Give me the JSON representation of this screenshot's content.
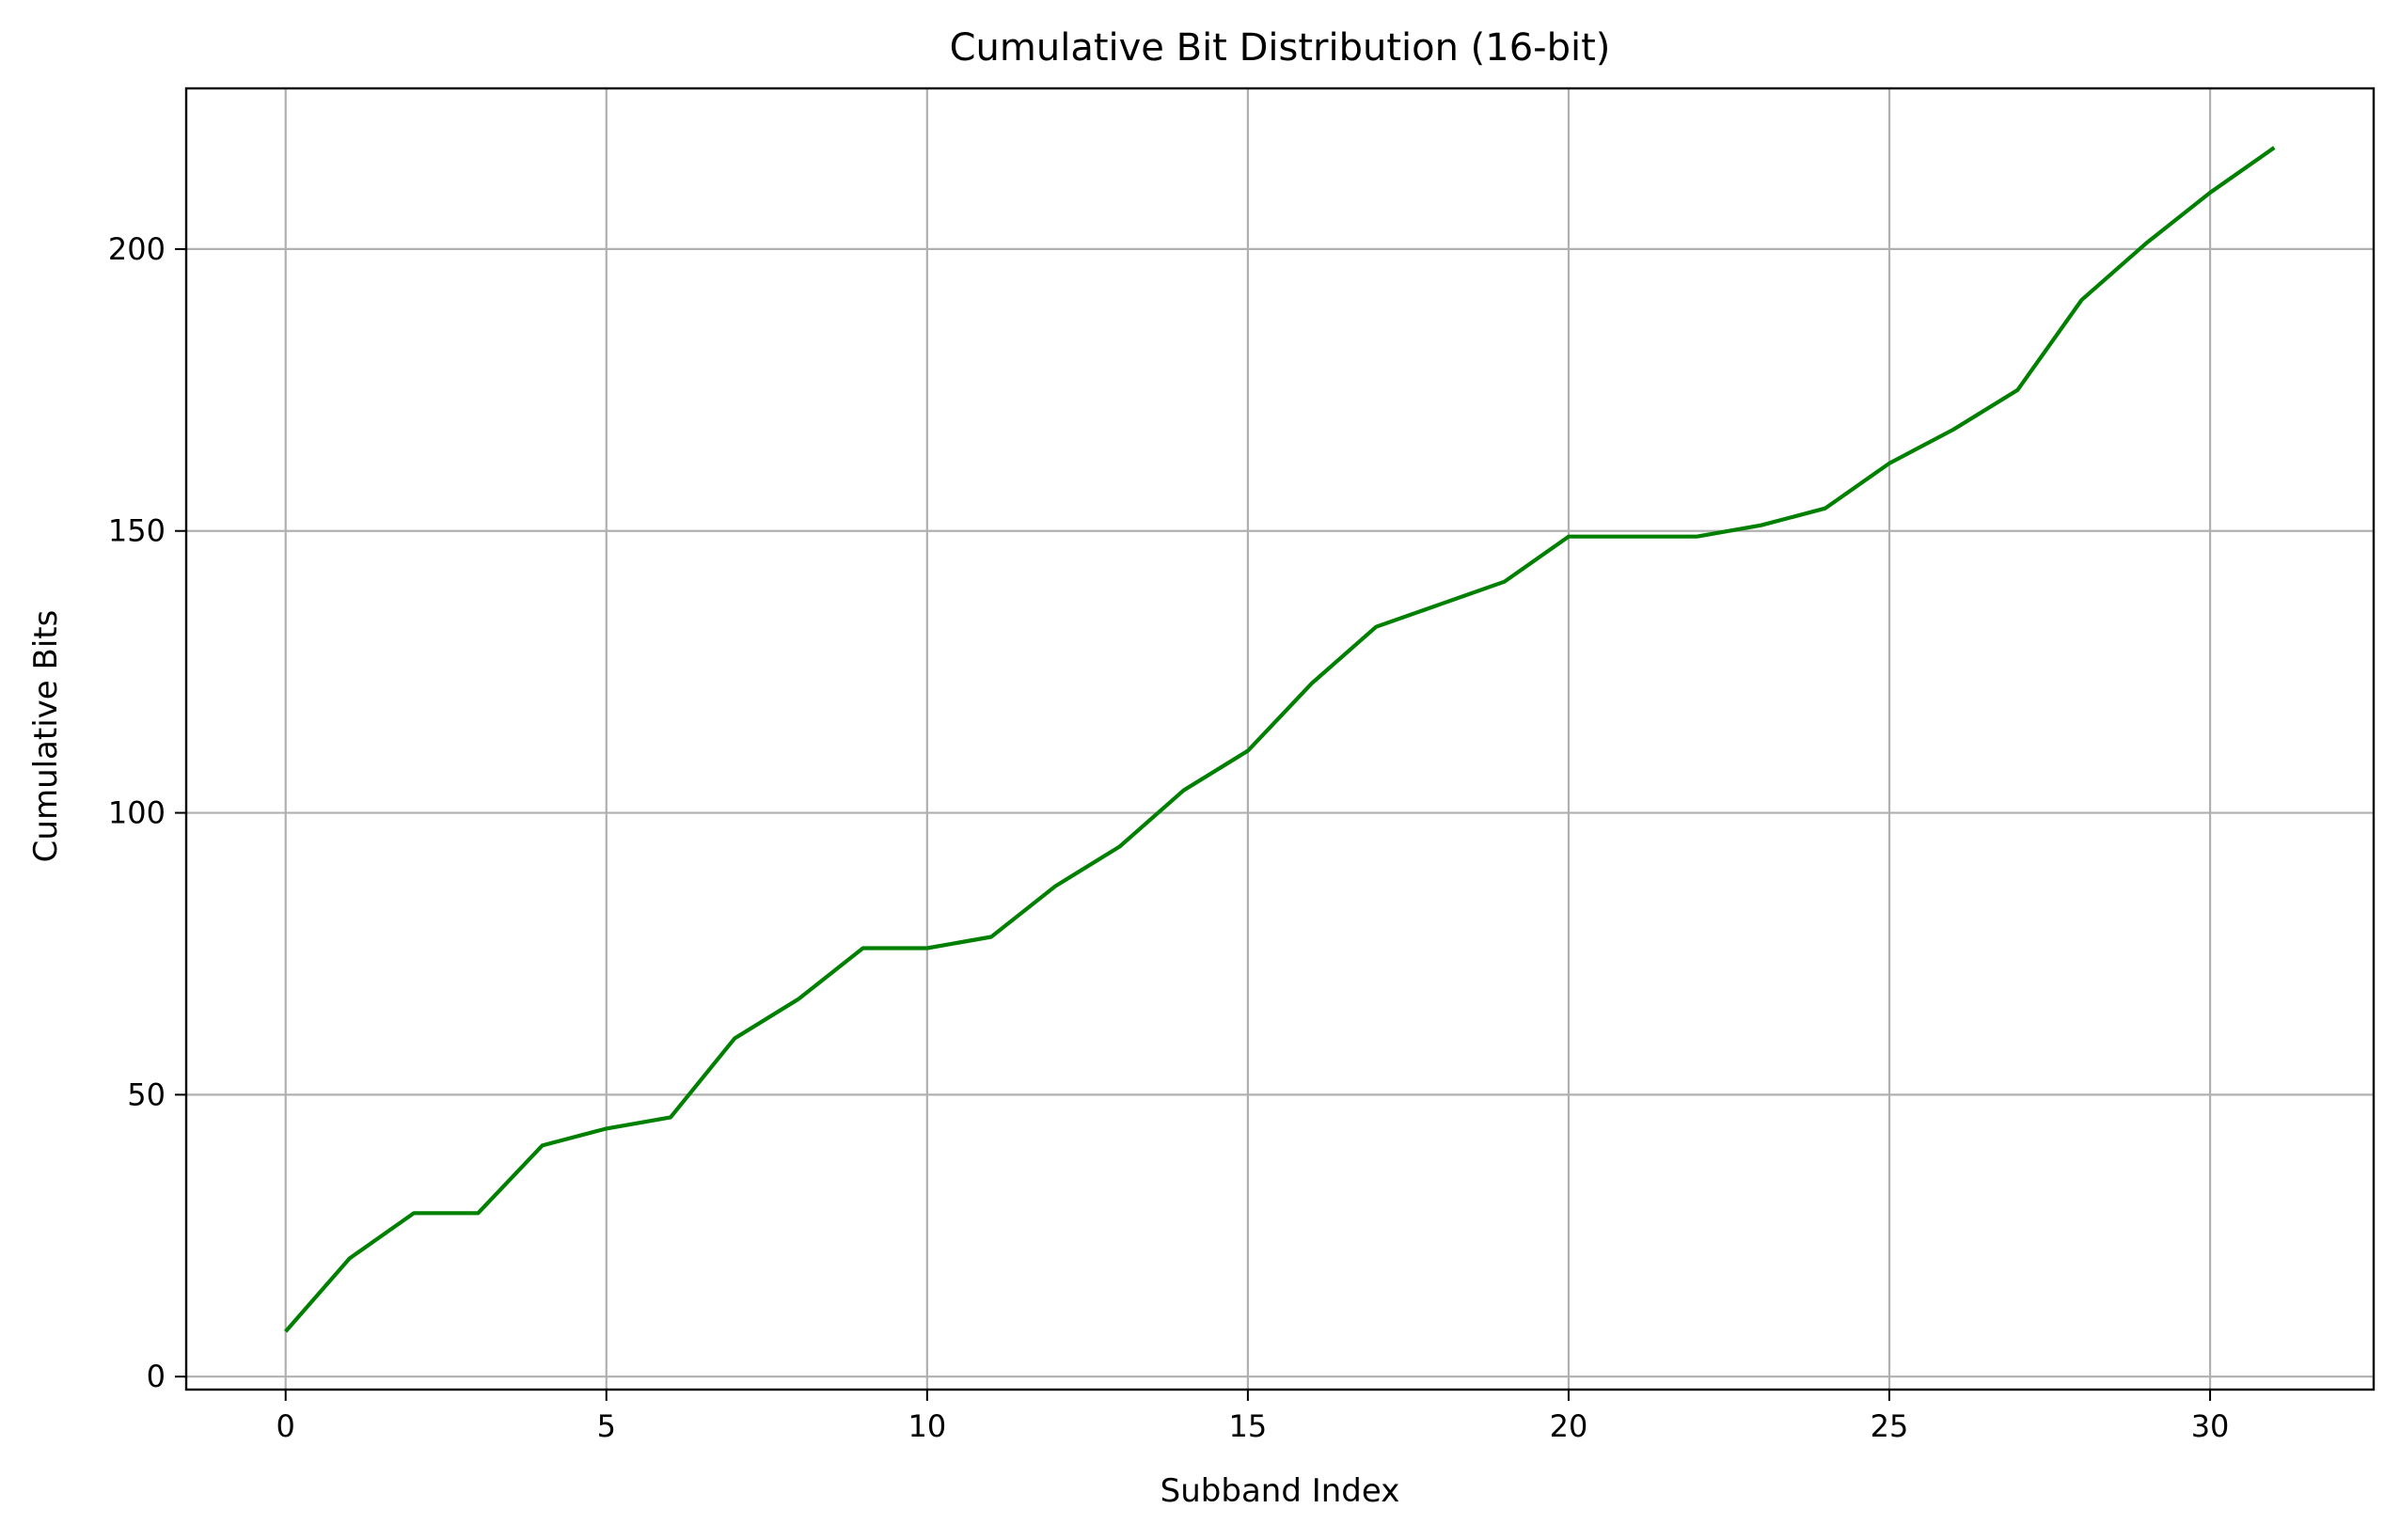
{
  "chart_data": {
    "type": "line",
    "title": "Cumulative Bit Distribution (16-bit)",
    "xlabel": "Subband Index",
    "ylabel": "Cumulative Bits",
    "xlim": [
      -1.55,
      32.55
    ],
    "ylim": [
      -2.3,
      228.5
    ],
    "x_ticks": [
      0,
      5,
      10,
      15,
      20,
      25,
      30
    ],
    "y_ticks": [
      0,
      50,
      100,
      150,
      200
    ],
    "grid": true,
    "legend": "none",
    "series": [
      {
        "color": "#008000",
        "x": [
          0,
          1,
          2,
          3,
          4,
          5,
          6,
          7,
          8,
          9,
          10,
          11,
          12,
          13,
          14,
          15,
          16,
          17,
          18,
          19,
          20,
          21,
          22,
          23,
          24,
          25,
          26,
          27,
          28,
          29,
          30,
          31
        ],
        "y": [
          8,
          21,
          29,
          29,
          41,
          44,
          46,
          60,
          67,
          76,
          76,
          78,
          87,
          94,
          104,
          111,
          123,
          133,
          137,
          141,
          149,
          149,
          149,
          151,
          154,
          162,
          168,
          175,
          191,
          201,
          210,
          218
        ]
      }
    ]
  }
}
